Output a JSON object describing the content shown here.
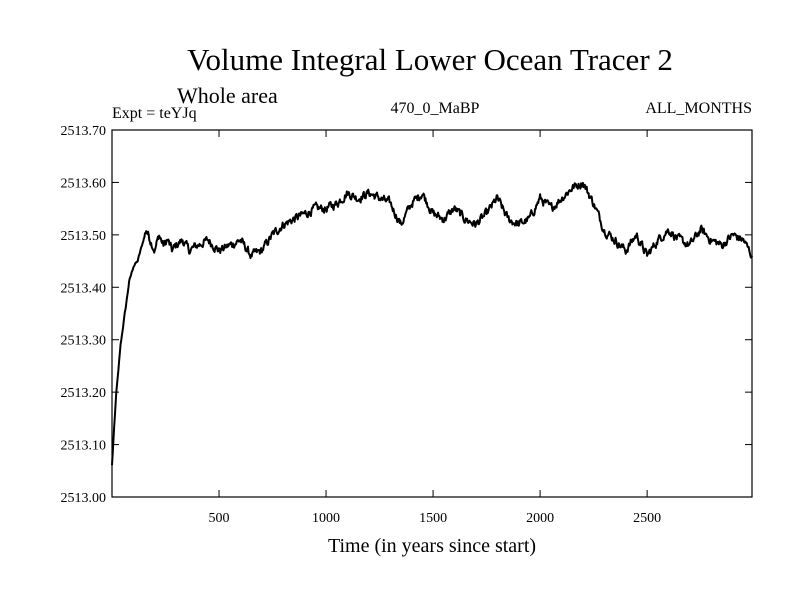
{
  "chart_data": {
    "type": "line",
    "title": "Volume Integral Lower Ocean Tracer 2",
    "subtitle": "Whole area",
    "left_label": "Expt = teYJq",
    "center_label": "470_0_MaBP",
    "right_label": "ALL_MONTHS",
    "xlabel": "Time (in years since start)",
    "ylabel": "",
    "xlim": [
      0,
      2990
    ],
    "ylim": [
      2513.0,
      2513.7
    ],
    "x_ticks": [
      500,
      1000,
      1500,
      2000,
      2500
    ],
    "x_tick_labels": [
      "500",
      "1000",
      "1500",
      "2000",
      "2500"
    ],
    "y_ticks": [
      2513.0,
      2513.1,
      2513.2,
      2513.3,
      2513.4,
      2513.5,
      2513.6,
      2513.7
    ],
    "y_tick_labels": [
      "2513.00",
      "2513.10",
      "2513.20",
      "2513.30",
      "2513.40",
      "2513.50",
      "2513.60",
      "2513.70"
    ],
    "grid": false,
    "series": [
      {
        "name": "teYJq",
        "x": [
          0,
          10,
          20,
          30,
          40,
          60,
          80,
          100,
          120,
          140,
          160,
          180,
          200,
          220,
          240,
          260,
          280,
          300,
          330,
          360,
          400,
          450,
          500,
          550,
          600,
          650,
          700,
          750,
          800,
          850,
          900,
          950,
          1000,
          1050,
          1100,
          1150,
          1200,
          1250,
          1300,
          1350,
          1400,
          1450,
          1500,
          1550,
          1600,
          1650,
          1700,
          1750,
          1800,
          1850,
          1900,
          1950,
          2000,
          2050,
          2100,
          2150,
          2200,
          2250,
          2300,
          2350,
          2400,
          2450,
          2500,
          2550,
          2600,
          2650,
          2700,
          2750,
          2800,
          2850,
          2900,
          2950,
          2990
        ],
        "values": [
          2513.06,
          2513.13,
          2513.2,
          2513.24,
          2513.29,
          2513.35,
          2513.41,
          2513.44,
          2513.45,
          2513.48,
          2513.51,
          2513.49,
          2513.47,
          2513.5,
          2513.48,
          2513.49,
          2513.47,
          2513.48,
          2513.49,
          2513.47,
          2513.48,
          2513.49,
          2513.47,
          2513.48,
          2513.49,
          2513.46,
          2513.47,
          2513.5,
          2513.52,
          2513.53,
          2513.54,
          2513.55,
          2513.55,
          2513.56,
          2513.58,
          2513.57,
          2513.58,
          2513.57,
          2513.56,
          2513.52,
          2513.56,
          2513.58,
          2513.54,
          2513.53,
          2513.55,
          2513.53,
          2513.52,
          2513.54,
          2513.57,
          2513.53,
          2513.52,
          2513.53,
          2513.57,
          2513.55,
          2513.57,
          2513.59,
          2513.6,
          2513.56,
          2513.51,
          2513.49,
          2513.47,
          2513.5,
          2513.46,
          2513.49,
          2513.51,
          2513.49,
          2513.48,
          2513.51,
          2513.49,
          2513.48,
          2513.5,
          2513.49,
          2513.46
        ]
      }
    ]
  }
}
